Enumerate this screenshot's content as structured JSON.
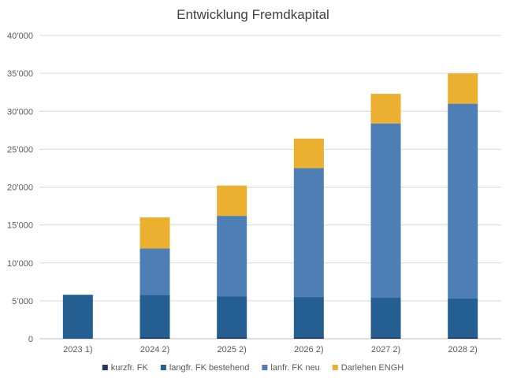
{
  "chart_data": {
    "type": "bar",
    "stacked": true,
    "title": "Entwicklung Fremdkapital",
    "xlabel": "",
    "ylabel": "",
    "ylim": [
      0,
      40000
    ],
    "y_ticks": [
      0,
      5000,
      10000,
      15000,
      20000,
      25000,
      30000,
      35000,
      40000
    ],
    "y_tick_labels": [
      "0",
      "5’000",
      "10’000",
      "15’000",
      "20’000",
      "25’000",
      "30’000",
      "35’000",
      "40’000"
    ],
    "grid": true,
    "legend_position": "bottom",
    "categories": [
      "2023 1)",
      "2024 2)",
      "2025 2)",
      "2026 2)",
      "2027 2)",
      "2028 2)"
    ],
    "series": [
      {
        "name": "kurzfr. FK",
        "color": "#1f3864",
        "values": [
          0,
          200,
          200,
          200,
          200,
          200
        ]
      },
      {
        "name": "langfr. FK bestehend",
        "color": "#255e91",
        "values": [
          5800,
          5600,
          5400,
          5300,
          5200,
          5100
        ]
      },
      {
        "name": "lanfr. FK neu",
        "color": "#4e7fb4",
        "values": [
          0,
          6100,
          10600,
          17000,
          23000,
          25700
        ]
      },
      {
        "name": "Darlehen ENGH",
        "color": "#ebb030",
        "values": [
          0,
          4100,
          4000,
          3900,
          3900,
          4000
        ]
      }
    ]
  }
}
